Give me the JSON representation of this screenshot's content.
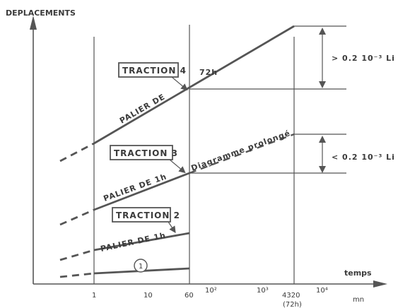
{
  "axes": {
    "y_title": "DEPLACEMENTS",
    "x_title": "temps",
    "x_unit": "mn"
  },
  "x_ticks": [
    {
      "label": "1"
    },
    {
      "label": "10"
    },
    {
      "label": "60"
    },
    {
      "label": "10²"
    },
    {
      "label": "10³"
    },
    {
      "label": "4320"
    },
    {
      "label": "10⁴"
    }
  ],
  "x_tick_sub": "(72h)",
  "annotations": {
    "traction4": "TRACTION  4",
    "traction3": "TRACTION  3",
    "traction2": "TRACTION  2",
    "palier72": "PALIER  DE",
    "palier72_suffix": "72h",
    "palier1h_3": "PALIER  DE  1h",
    "palier1h_2": "PALIER DE 1h",
    "prolonge": "Diagramme  prolongé",
    "circle1": "1",
    "gt": "> 0.2  10⁻³ Li",
    "lt": "< 0.2  10⁻³ Li"
  },
  "colors": {
    "ink": "#3a3a3a",
    "line": "#555555"
  }
}
